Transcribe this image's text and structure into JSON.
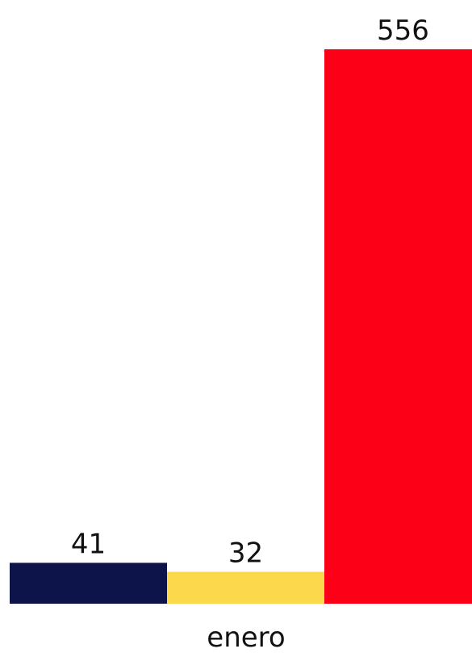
{
  "chart_data": {
    "type": "bar",
    "categories": [
      "enero"
    ],
    "series": [
      {
        "values": [
          41
        ],
        "color": "#0d1449"
      },
      {
        "values": [
          32
        ],
        "color": "#fcd94c"
      },
      {
        "values": [
          556
        ],
        "color": "#fb0016"
      }
    ],
    "data_labels": [
      "41",
      "32",
      "556"
    ],
    "category_label": "enero",
    "ylim": [
      0,
      600
    ],
    "grid": false,
    "legend": "none"
  }
}
